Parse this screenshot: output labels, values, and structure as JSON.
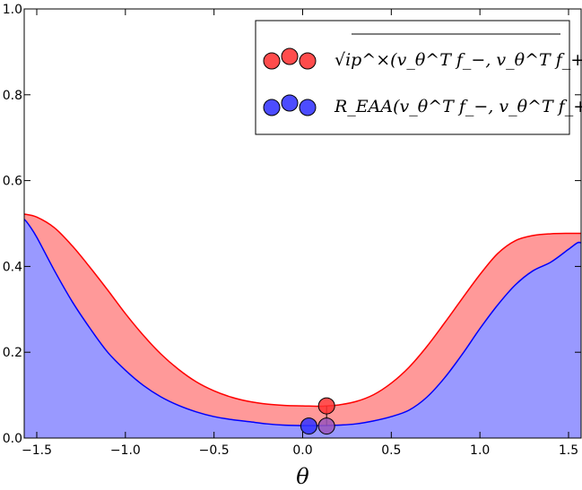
{
  "chart_data": {
    "type": "area",
    "xlabel": "θ",
    "ylabel": "",
    "xlim": [
      -1.5708,
      1.5708
    ],
    "ylim": [
      0.0,
      1.0
    ],
    "xticks": [
      "−1.5",
      "−1.0",
      "−0.5",
      "0.0",
      "0.5",
      "1.0",
      "1.5"
    ],
    "xtick_values": [
      -1.5,
      -1.0,
      -0.5,
      0.0,
      0.5,
      1.0,
      1.5
    ],
    "yticks": [
      "0.0",
      "0.2",
      "0.4",
      "0.6",
      "0.8",
      "1.0"
    ],
    "ytick_values": [
      0.0,
      0.2,
      0.4,
      0.6,
      0.8,
      1.0
    ],
    "grid": false,
    "legend_position": "top-right",
    "series": [
      {
        "name": "√ip^×(v_θ^T f_−, v_θ^T f_+)",
        "color": "#ff0000",
        "fill": "#ff9999",
        "x": [
          -1.5708,
          -1.5,
          -1.4,
          -1.3,
          -1.2,
          -1.1,
          -1.0,
          -0.9,
          -0.8,
          -0.7,
          -0.6,
          -0.5,
          -0.4,
          -0.3,
          -0.2,
          -0.1,
          0.0,
          0.1,
          0.14,
          0.2,
          0.3,
          0.4,
          0.5,
          0.6,
          0.7,
          0.8,
          0.9,
          1.0,
          1.1,
          1.2,
          1.3,
          1.4,
          1.5,
          1.5708
        ],
        "y": [
          0.522,
          0.515,
          0.49,
          0.448,
          0.398,
          0.345,
          0.29,
          0.24,
          0.196,
          0.16,
          0.131,
          0.11,
          0.095,
          0.085,
          0.079,
          0.076,
          0.075,
          0.074,
          0.075,
          0.077,
          0.085,
          0.101,
          0.128,
          0.165,
          0.213,
          0.268,
          0.325,
          0.381,
          0.43,
          0.46,
          0.472,
          0.476,
          0.477,
          0.477
        ]
      },
      {
        "name": "R_EAA(v_θ^T f_−, v_θ^T f_+)",
        "color": "#0000ff",
        "fill": "#9999ff",
        "x": [
          -1.5708,
          -1.55,
          -1.5,
          -1.4,
          -1.3,
          -1.2,
          -1.1,
          -1.0,
          -0.9,
          -0.8,
          -0.7,
          -0.6,
          -0.5,
          -0.4,
          -0.3,
          -0.2,
          -0.1,
          0.0,
          0.1,
          0.2,
          0.3,
          0.4,
          0.5,
          0.6,
          0.7,
          0.8,
          0.9,
          1.0,
          1.1,
          1.2,
          1.3,
          1.4,
          1.5,
          1.55,
          1.5708
        ],
        "y": [
          0.51,
          0.5,
          0.468,
          0.39,
          0.318,
          0.256,
          0.2,
          0.158,
          0.123,
          0.096,
          0.076,
          0.061,
          0.05,
          0.043,
          0.038,
          0.033,
          0.03,
          0.029,
          0.029,
          0.03,
          0.033,
          0.04,
          0.05,
          0.065,
          0.095,
          0.14,
          0.195,
          0.255,
          0.31,
          0.357,
          0.39,
          0.41,
          0.44,
          0.455,
          0.455
        ]
      }
    ],
    "markers": [
      {
        "x": 0.135,
        "y": 0.075,
        "color": "#ff3333"
      },
      {
        "x": 0.035,
        "y": 0.028,
        "color": "#3333ff"
      },
      {
        "x": 0.135,
        "y": 0.028,
        "color": "#9955bb"
      }
    ]
  }
}
